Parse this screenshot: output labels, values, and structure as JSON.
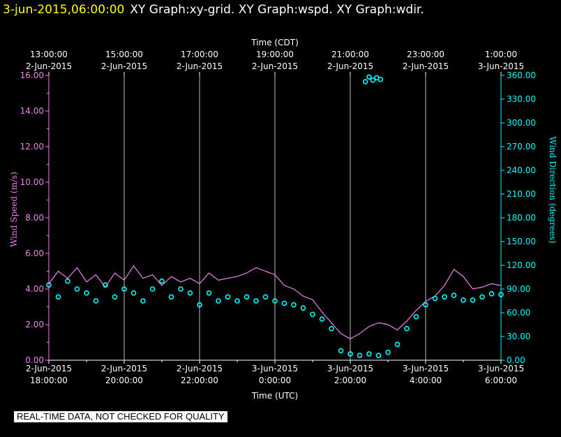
{
  "header": {
    "timestamp": "3-jun-2015,06:00:00",
    "graphs": "XY Graph:xy-grid.  XY Graph:wspd.  XY Graph:wdir."
  },
  "colors": {
    "background": "#000000",
    "axis": "#ffffff",
    "grid": "#bbbbbb",
    "speed": "#ee82ee",
    "direction": "#00ffff",
    "title_time": "#ffff00"
  },
  "chart_data": {
    "type": "line",
    "grid": true,
    "top_axis": {
      "label": "Time (CDT)",
      "ticks": [
        {
          "time": "13:00:00",
          "date": "2-Jun-2015"
        },
        {
          "time": "15:00:00",
          "date": "2-Jun-2015"
        },
        {
          "time": "17:00:00",
          "date": "2-Jun-2015"
        },
        {
          "time": "19:00:00",
          "date": "2-Jun-2015"
        },
        {
          "time": "21:00:00",
          "date": "2-Jun-2015"
        },
        {
          "time": "23:00:00",
          "date": "2-Jun-2015"
        },
        {
          "time": "1:00:00",
          "date": "3-Jun-2015"
        }
      ]
    },
    "bottom_axis": {
      "label": "Time (UTC)",
      "range": [
        "2015-06-02 18:00",
        "2015-06-03 06:00"
      ],
      "ticks": [
        {
          "date": "2-Jun-2015",
          "time": "18:00:00"
        },
        {
          "date": "2-Jun-2015",
          "time": "20:00:00"
        },
        {
          "date": "2-Jun-2015",
          "time": "22:00:00"
        },
        {
          "date": "3-Jun-2015",
          "time": "0:00:00"
        },
        {
          "date": "3-Jun-2015",
          "time": "2:00:00"
        },
        {
          "date": "3-Jun-2015",
          "time": "4:00:00"
        },
        {
          "date": "3-Jun-2015",
          "time": "6:00:00"
        }
      ]
    },
    "left_axis": {
      "label": "Wind Speed (m/s)",
      "range": [
        0,
        16
      ],
      "ticks": [
        "0.00",
        "2.00",
        "4.00",
        "6.00",
        "8.00",
        "10.00",
        "12.00",
        "14.00",
        "16.00"
      ]
    },
    "right_axis": {
      "label": "Wind Direction (degrees)",
      "range": [
        0,
        360
      ],
      "ticks": [
        "0.00",
        "30.00",
        "60.00",
        "90.00",
        "120.00",
        "150.00",
        "180.00",
        "210.00",
        "240.00",
        "270.00",
        "300.00",
        "330.00",
        "360.00"
      ]
    },
    "series": [
      {
        "name": "wspd",
        "style": "line",
        "x_unit": "hours since 2015-06-02 18:00 UTC",
        "x": [
          0,
          0.25,
          0.5,
          0.75,
          1,
          1.25,
          1.5,
          1.75,
          2,
          2.25,
          2.5,
          2.75,
          3,
          3.25,
          3.5,
          3.75,
          4,
          4.25,
          4.5,
          4.75,
          5,
          5.25,
          5.5,
          5.75,
          6,
          6.25,
          6.5,
          6.75,
          7,
          7.25,
          7.5,
          7.75,
          8,
          8.25,
          8.5,
          8.75,
          9,
          9.25,
          9.5,
          9.75,
          10,
          10.25,
          10.5,
          10.75,
          11,
          11.25,
          11.5,
          11.75,
          12
        ],
        "values": [
          4.3,
          5.0,
          4.6,
          5.2,
          4.4,
          4.8,
          4.1,
          4.9,
          4.5,
          5.3,
          4.6,
          4.8,
          4.2,
          4.7,
          4.4,
          4.6,
          4.3,
          4.9,
          4.5,
          4.6,
          4.7,
          4.9,
          5.2,
          5.0,
          4.8,
          4.2,
          4.0,
          3.6,
          3.4,
          2.7,
          2.1,
          1.5,
          1.2,
          1.5,
          1.9,
          2.1,
          2.0,
          1.7,
          2.2,
          2.8,
          3.3,
          3.6,
          4.2,
          5.1,
          4.7,
          4.0,
          4.1,
          4.3,
          4.2
        ]
      },
      {
        "name": "wdir",
        "style": "points",
        "x_unit": "hours since 2015-06-02 18:00 UTC",
        "x": [
          0,
          0.25,
          0.5,
          0.75,
          1,
          1.25,
          1.5,
          1.75,
          2,
          2.25,
          2.5,
          2.75,
          3,
          3.25,
          3.5,
          3.75,
          4,
          4.25,
          4.5,
          4.75,
          5,
          5.25,
          5.5,
          5.75,
          6,
          6.25,
          6.5,
          6.75,
          7,
          7.25,
          7.5,
          7.75,
          8,
          8.25,
          8.5,
          8.75,
          9,
          9.25,
          9.5,
          9.75,
          10,
          10.25,
          10.5,
          10.75,
          11,
          11.25,
          11.5,
          11.75,
          12
        ],
        "values": [
          95,
          80,
          100,
          90,
          85,
          75,
          95,
          80,
          90,
          85,
          75,
          90,
          100,
          80,
          90,
          85,
          70,
          85,
          75,
          80,
          75,
          80,
          75,
          80,
          75,
          72,
          70,
          66,
          58,
          52,
          40,
          12,
          8,
          6,
          8,
          6,
          10,
          20,
          40,
          55,
          70,
          78,
          80,
          82,
          76,
          76,
          80,
          84,
          83
        ]
      },
      {
        "name": "wdir-wrap",
        "style": "points",
        "x_unit": "hours since 2015-06-02 18:00 UTC",
        "x": [
          8.4,
          8.5,
          8.6,
          8.7,
          8.8
        ],
        "values": [
          352,
          358,
          354,
          357,
          355
        ]
      }
    ]
  },
  "footer": {
    "note": "REAL-TIME DATA, NOT CHECKED FOR QUALITY"
  }
}
